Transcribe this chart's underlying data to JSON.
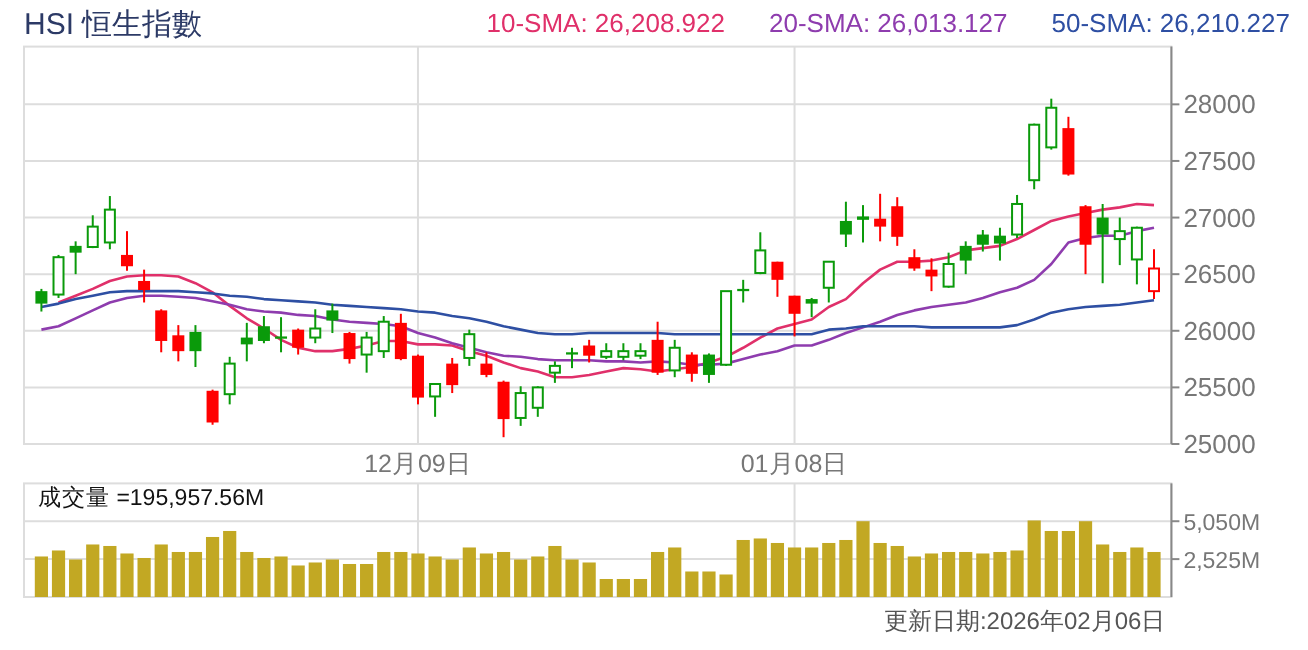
{
  "chart_data": [
    {
      "type": "candlestick",
      "title": "HSI 恒生指數",
      "categories": [
        null,
        null,
        null,
        null,
        null,
        null,
        null,
        null,
        null,
        null,
        null,
        null,
        null,
        null,
        null,
        null,
        null,
        null,
        null,
        null,
        null,
        null,
        "12月09日",
        null,
        null,
        null,
        null,
        null,
        null,
        null,
        null,
        null,
        null,
        null,
        null,
        null,
        null,
        null,
        null,
        null,
        null,
        null,
        null,
        null,
        "01月08日",
        null,
        null,
        null,
        null,
        null,
        null,
        null,
        null,
        null,
        null,
        null,
        null,
        null,
        null,
        null,
        null,
        null,
        null,
        null,
        null,
        null
      ],
      "ohlc": [
        [
          26350,
          26370,
          26170,
          26240
        ],
        [
          26320,
          26670,
          26290,
          26650
        ],
        [
          26750,
          26790,
          26500,
          26690
        ],
        [
          26740,
          27020,
          26730,
          26920
        ],
        [
          26780,
          27190,
          26720,
          27070
        ],
        [
          26670,
          26880,
          26530,
          26570
        ],
        [
          26440,
          26540,
          26250,
          26360
        ],
        [
          26180,
          26190,
          25810,
          25910
        ],
        [
          25960,
          26050,
          25730,
          25820
        ],
        [
          25990,
          26050,
          25680,
          25820
        ],
        [
          25470,
          25480,
          25170,
          25190
        ],
        [
          25440,
          25770,
          25350,
          25710
        ],
        [
          25940,
          26070,
          25730,
          25880
        ],
        [
          26040,
          26130,
          25890,
          25910
        ],
        [
          25950,
          26120,
          25810,
          25930
        ],
        [
          26010,
          26020,
          25790,
          25850
        ],
        [
          25940,
          26190,
          25890,
          26020
        ],
        [
          26180,
          26240,
          25980,
          26090
        ],
        [
          25980,
          25990,
          25710,
          25750
        ],
        [
          25790,
          25990,
          25630,
          25940
        ],
        [
          25820,
          26130,
          25760,
          26080
        ],
        [
          26070,
          26150,
          25740,
          25750
        ],
        [
          25780,
          25790,
          25350,
          25410
        ],
        [
          25420,
          25530,
          25240,
          25530
        ],
        [
          25710,
          25760,
          25450,
          25520
        ],
        [
          25760,
          26010,
          25690,
          25970
        ],
        [
          25710,
          25810,
          25590,
          25610
        ],
        [
          25550,
          25560,
          25060,
          25220
        ],
        [
          25230,
          25510,
          25160,
          25450
        ],
        [
          25320,
          25510,
          25240,
          25500
        ],
        [
          25630,
          25730,
          25540,
          25690
        ],
        [
          25810,
          25850,
          25670,
          25790
        ],
        [
          25870,
          25920,
          25720,
          25780
        ],
        [
          25770,
          25890,
          25750,
          25820
        ],
        [
          25770,
          25890,
          25740,
          25820
        ],
        [
          25780,
          25890,
          25750,
          25820
        ],
        [
          25920,
          26080,
          25610,
          25630
        ],
        [
          25650,
          25920,
          25590,
          25850
        ],
        [
          25790,
          25810,
          25550,
          25620
        ],
        [
          25790,
          25800,
          25540,
          25610
        ],
        [
          25700,
          26350,
          25690,
          26350
        ],
        [
          26370,
          26450,
          26250,
          26350
        ],
        [
          26510,
          26870,
          26500,
          26710
        ],
        [
          26610,
          26610,
          26300,
          26450
        ],
        [
          26310,
          26310,
          25950,
          26150
        ],
        [
          26280,
          26290,
          26120,
          26240
        ],
        [
          26380,
          26610,
          26250,
          26610
        ],
        [
          26970,
          27140,
          26740,
          26850
        ],
        [
          27010,
          27110,
          26780,
          26980
        ],
        [
          26990,
          27210,
          26790,
          26920
        ],
        [
          27100,
          27180,
          26750,
          26830
        ],
        [
          26650,
          26720,
          26530,
          26550
        ],
        [
          26540,
          26640,
          26350,
          26480
        ],
        [
          26390,
          26690,
          26380,
          26590
        ],
        [
          26750,
          26790,
          26500,
          26620
        ],
        [
          26850,
          26890,
          26700,
          26760
        ],
        [
          26840,
          26910,
          26620,
          26770
        ],
        [
          26850,
          27200,
          26820,
          27120
        ],
        [
          27330,
          27830,
          27250,
          27820
        ],
        [
          27620,
          28050,
          27600,
          27970
        ],
        [
          27790,
          27890,
          27370,
          27380
        ],
        [
          27100,
          27110,
          26500,
          26760
        ],
        [
          27000,
          27120,
          26420,
          26850
        ],
        [
          26810,
          27000,
          26580,
          26880
        ],
        [
          26630,
          26920,
          26410,
          26910
        ],
        [
          26350,
          26720,
          26280,
          26550
        ]
      ],
      "colors": [
        "#0a9a0a",
        "#0a9a0a",
        "#0a9a0a",
        "#0a9a0a",
        "#0a9a0a",
        "#ff0000",
        "#ff0000",
        "#ff0000",
        "#ff0000",
        "#0a9a0a",
        "#ff0000",
        "#0a9a0a",
        "#0a9a0a",
        "#0a9a0a",
        "#0a9a0a",
        "#ff0000",
        "#0a9a0a",
        "#0a9a0a",
        "#ff0000",
        "#0a9a0a",
        "#0a9a0a",
        "#ff0000",
        "#ff0000",
        "#0a9a0a",
        "#ff0000",
        "#0a9a0a",
        "#ff0000",
        "#ff0000",
        "#0a9a0a",
        "#0a9a0a",
        "#0a9a0a",
        "#0a9a0a",
        "#ff0000",
        "#0a9a0a",
        "#0a9a0a",
        "#0a9a0a",
        "#ff0000",
        "#0a9a0a",
        "#ff0000",
        "#0a9a0a",
        "#0a9a0a",
        "#0a9a0a",
        "#0a9a0a",
        "#ff0000",
        "#ff0000",
        "#0a9a0a",
        "#0a9a0a",
        "#0a9a0a",
        "#0a9a0a",
        "#ff0000",
        "#ff0000",
        "#ff0000",
        "#ff0000",
        "#0a9a0a",
        "#0a9a0a",
        "#0a9a0a",
        "#0a9a0a",
        "#0a9a0a",
        "#0a9a0a",
        "#0a9a0a",
        "#ff0000",
        "#ff0000",
        "#0a9a0a",
        "#0a9a0a",
        "#0a9a0a",
        "#ff0000"
      ],
      "series": [
        {
          "type": "line",
          "name": "10-SMA: 26,208.922",
          "color": "#e0306a",
          "values": [
            null,
            26250,
            26310,
            26370,
            26440,
            26480,
            26490,
            26490,
            26480,
            26420,
            26340,
            26220,
            26110,
            26020,
            25920,
            25850,
            25820,
            25820,
            25840,
            25870,
            25910,
            25910,
            25880,
            25880,
            25870,
            25820,
            25780,
            25720,
            25670,
            25640,
            25590,
            25590,
            25610,
            25640,
            25670,
            25660,
            25640,
            25660,
            25680,
            25720,
            25770,
            25850,
            25940,
            26020,
            26060,
            26100,
            26210,
            26280,
            26420,
            26540,
            26610,
            26610,
            26620,
            26650,
            26710,
            26730,
            26750,
            26810,
            26890,
            26970,
            27010,
            27040,
            27070,
            27090,
            27120,
            27110
          ]
        },
        {
          "type": "line",
          "name": "20-SMA: 26,013.127",
          "color": "#8e3cae",
          "values": [
            26010,
            26040,
            26110,
            26180,
            26250,
            26290,
            26310,
            26310,
            26300,
            26290,
            26260,
            26230,
            26190,
            26170,
            26160,
            26140,
            26130,
            26100,
            26080,
            26070,
            26060,
            26040,
            25980,
            25940,
            25890,
            25850,
            25810,
            25780,
            25770,
            25750,
            25740,
            25740,
            25740,
            25730,
            25730,
            25720,
            25730,
            25720,
            25700,
            25700,
            25710,
            25750,
            25790,
            25820,
            25870,
            25870,
            25920,
            25980,
            26030,
            26080,
            26140,
            26180,
            26210,
            26230,
            26250,
            26290,
            26340,
            26380,
            26450,
            26590,
            26780,
            26820,
            26840,
            26840,
            26880,
            26910
          ]
        },
        {
          "type": "line",
          "name": "50-SMA: 26,210.227",
          "color": "#2e4fa3",
          "values": [
            26210,
            26240,
            26280,
            26310,
            26340,
            26350,
            26350,
            26350,
            26350,
            26340,
            26330,
            26310,
            26300,
            26280,
            26270,
            26260,
            26250,
            26230,
            26220,
            26210,
            26200,
            26190,
            26170,
            26160,
            26130,
            26110,
            26080,
            26040,
            26010,
            25980,
            25970,
            25970,
            25980,
            25980,
            25980,
            25980,
            25980,
            25970,
            25970,
            25970,
            25970,
            25970,
            25970,
            25970,
            25970,
            25970,
            26010,
            26020,
            26040,
            26040,
            26040,
            26040,
            26030,
            26030,
            26030,
            26030,
            26030,
            26050,
            26100,
            26160,
            26190,
            26210,
            26220,
            26230,
            26250,
            26270
          ]
        }
      ],
      "ylim": [
        25000,
        28510
      ],
      "yticks": [
        25000,
        25500,
        26000,
        26500,
        27000,
        27500,
        28000
      ],
      "grid": true,
      "legend": "top right"
    },
    {
      "type": "bar",
      "title": "成交量 =195,957.56M",
      "color": "#c2a823",
      "categories": [
        null,
        null,
        null,
        null,
        null,
        null,
        null,
        null,
        null,
        null,
        null,
        null,
        null,
        null,
        null,
        null,
        null,
        null,
        null,
        null,
        null,
        null,
        null,
        null,
        null,
        null,
        null,
        null,
        null,
        null,
        null,
        null,
        null,
        null,
        null,
        null,
        null,
        null,
        null,
        null,
        null,
        null,
        null,
        null,
        null,
        null,
        null,
        null,
        null,
        null,
        null,
        null,
        null,
        null,
        null,
        null,
        null,
        null,
        null,
        null,
        null,
        null,
        null,
        null,
        null,
        null
      ],
      "values": [
        2700,
        3100,
        2500,
        3500,
        3400,
        2900,
        2600,
        3500,
        3000,
        3000,
        4000,
        4400,
        3000,
        2600,
        2700,
        2100,
        2300,
        2500,
        2200,
        2200,
        3000,
        3000,
        2900,
        2700,
        2500,
        3300,
        2900,
        3000,
        2500,
        2700,
        3400,
        2500,
        2300,
        1200,
        1200,
        1200,
        3000,
        3300,
        1700,
        1700,
        1500,
        3800,
        3900,
        3600,
        3300,
        3300,
        3600,
        3800,
        5050,
        3600,
        3400,
        2700,
        2900,
        3000,
        3000,
        2900,
        3000,
        3100,
        5100,
        4400,
        4400,
        5050,
        3500,
        3000,
        3300,
        3000
      ],
      "ylim": [
        0,
        7570
      ],
      "yticks": [
        {
          "value": 2525,
          "label": "2,525M"
        },
        {
          "value": 5050,
          "label": "5,050M"
        }
      ],
      "grid": true,
      "tick_labels": "y",
      "annotations": [
        "更新日期:2026年02月06日"
      ]
    }
  ]
}
